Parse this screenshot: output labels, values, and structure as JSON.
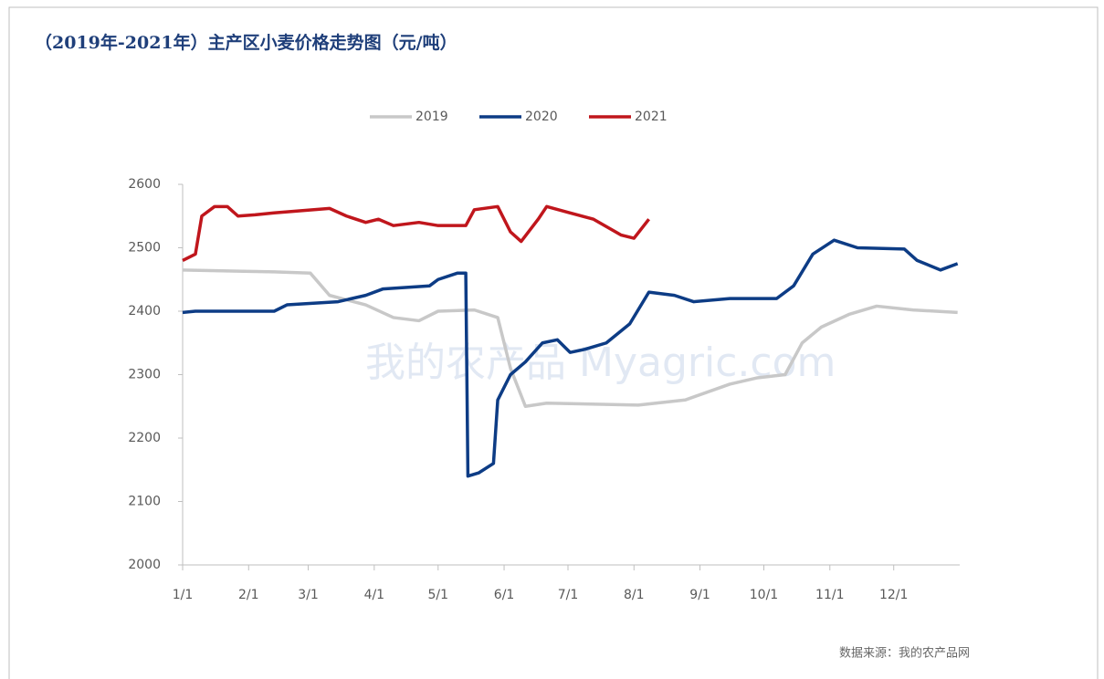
{
  "chart_data": {
    "type": "line",
    "title": "（2019年-2021年）主产区小麦价格走势图（元/吨）",
    "source": "数据来源：我的农产品网",
    "watermark": "我的农产品 Myagric.com",
    "legend": "top",
    "grid": false,
    "xlim": [
      0,
      365
    ],
    "xticks": [
      {
        "value": 0,
        "label": "1/1"
      },
      {
        "value": 31,
        "label": "2/1"
      },
      {
        "value": 59,
        "label": "3/1"
      },
      {
        "value": 90,
        "label": "4/1"
      },
      {
        "value": 120,
        "label": "5/1"
      },
      {
        "value": 151,
        "label": "6/1"
      },
      {
        "value": 181,
        "label": "7/1"
      },
      {
        "value": 212,
        "label": "8/1"
      },
      {
        "value": 243,
        "label": "9/1"
      },
      {
        "value": 273,
        "label": "10/1"
      },
      {
        "value": 304,
        "label": "11/1"
      },
      {
        "value": 334,
        "label": "12/1"
      }
    ],
    "ylim": [
      2000,
      2600
    ],
    "yticks": [
      2000,
      2100,
      2200,
      2300,
      2400,
      2500,
      2600
    ],
    "series": [
      {
        "name": "2019",
        "color": "#c8c8c8",
        "x": [
          0,
          43,
          60,
          69,
          86,
          99,
          111,
          120,
          137,
          148,
          154,
          161,
          171,
          214,
          236,
          257,
          270,
          283,
          291,
          300,
          313,
          326,
          343,
          364
        ],
        "values": [
          2465,
          2462,
          2460,
          2425,
          2410,
          2390,
          2385,
          2400,
          2402,
          2390,
          2310,
          2250,
          2255,
          2252,
          2260,
          2285,
          2295,
          2300,
          2350,
          2375,
          2395,
          2408,
          2402,
          2398
        ]
      },
      {
        "name": "2020",
        "color": "#0d3c85",
        "x": [
          0,
          6,
          43,
          49,
          73,
          86,
          94,
          116,
          120,
          129,
          133,
          134,
          139,
          146,
          148,
          154,
          161,
          169,
          176,
          182,
          189,
          199,
          210,
          219,
          231,
          240,
          257,
          270,
          279,
          287,
          296,
          306,
          317,
          339,
          345,
          356,
          364
        ],
        "values": [
          2398,
          2400,
          2400,
          2410,
          2415,
          2425,
          2435,
          2440,
          2450,
          2460,
          2460,
          2140,
          2145,
          2160,
          2260,
          2300,
          2320,
          2350,
          2355,
          2335,
          2340,
          2350,
          2380,
          2430,
          2425,
          2415,
          2420,
          2420,
          2420,
          2440,
          2490,
          2512,
          2500,
          2498,
          2480,
          2465,
          2475
        ]
      },
      {
        "name": "2021",
        "color": "#c0161c",
        "x": [
          0,
          6,
          9,
          15,
          21,
          26,
          34,
          43,
          69,
          77,
          86,
          92,
          99,
          111,
          120,
          133,
          137,
          148,
          154,
          159,
          167,
          171,
          182,
          193,
          206,
          212,
          219
        ],
        "values": [
          2480,
          2490,
          2550,
          2565,
          2565,
          2550,
          2552,
          2555,
          2562,
          2550,
          2540,
          2545,
          2535,
          2540,
          2535,
          2535,
          2560,
          2565,
          2525,
          2510,
          2545,
          2565,
          2555,
          2545,
          2520,
          2515,
          2545
        ]
      }
    ]
  }
}
